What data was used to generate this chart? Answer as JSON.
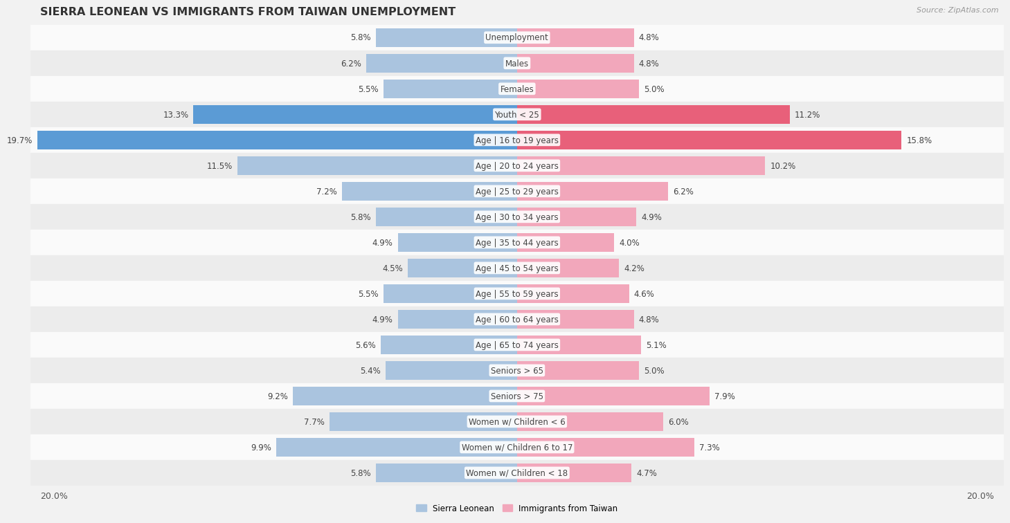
{
  "title": "SIERRA LEONEAN VS IMMIGRANTS FROM TAIWAN UNEMPLOYMENT",
  "source": "Source: ZipAtlas.com",
  "categories": [
    "Unemployment",
    "Males",
    "Females",
    "Youth < 25",
    "Age | 16 to 19 years",
    "Age | 20 to 24 years",
    "Age | 25 to 29 years",
    "Age | 30 to 34 years",
    "Age | 35 to 44 years",
    "Age | 45 to 54 years",
    "Age | 55 to 59 years",
    "Age | 60 to 64 years",
    "Age | 65 to 74 years",
    "Seniors > 65",
    "Seniors > 75",
    "Women w/ Children < 6",
    "Women w/ Children 6 to 17",
    "Women w/ Children < 18"
  ],
  "sierra_leonean": [
    5.8,
    6.2,
    5.5,
    13.3,
    19.7,
    11.5,
    7.2,
    5.8,
    4.9,
    4.5,
    5.5,
    4.9,
    5.6,
    5.4,
    9.2,
    7.7,
    9.9,
    5.8
  ],
  "taiwan": [
    4.8,
    4.8,
    5.0,
    11.2,
    15.8,
    10.2,
    6.2,
    4.9,
    4.0,
    4.2,
    4.6,
    4.8,
    5.1,
    5.0,
    7.9,
    6.0,
    7.3,
    4.7
  ],
  "sierra_color": "#aac4df",
  "taiwan_color": "#f2a7bb",
  "sierra_highlight_color": "#5b9bd5",
  "taiwan_highlight_color": "#e8607a",
  "highlight_rows": [
    3,
    4
  ],
  "background_color": "#f2f2f2",
  "row_bg_even": "#fafafa",
  "row_bg_odd": "#ececec",
  "max_val": 20.0,
  "legend_sierra": "Sierra Leonean",
  "legend_taiwan": "Immigrants from Taiwan",
  "title_fontsize": 11.5,
  "source_fontsize": 8,
  "label_fontsize": 8.5,
  "value_fontsize": 8.5,
  "footer_fontsize": 9
}
